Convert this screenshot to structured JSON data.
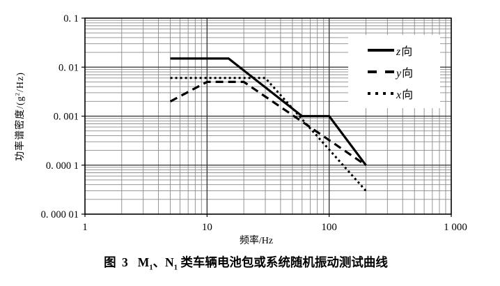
{
  "colors": {
    "background": "#ffffff",
    "curve": "#000000",
    "grid_minor": "#8a8a8a",
    "grid_major": "#2e2e2e",
    "border": "#000000"
  },
  "axes": {
    "x_title": "频率/Hz",
    "y_title_part1": "功率谱密度/(g",
    "y_title_sup": "2",
    "y_title_part2": "/Hz)"
  },
  "legend": {
    "entries": [
      {
        "letter": "z",
        "suffix": "向",
        "style": "solid"
      },
      {
        "letter": "y",
        "suffix": "向",
        "style": "dashed"
      },
      {
        "letter": "x",
        "suffix": "向",
        "style": "dotted"
      }
    ]
  },
  "caption": {
    "fig_no": "图 3",
    "part1": "M",
    "sub1": "1",
    "part2": "、N",
    "sub2": "1",
    "part3": " 类车辆电池包或系统随机振动测试曲线"
  },
  "chart_data": {
    "type": "line",
    "title": "图 3 M₁、N₁ 类车辆电池包或系统随机振动测试曲线",
    "xlabel": "频率/Hz",
    "ylabel": "功率谱密度/(g²/Hz)",
    "xscale": "log",
    "yscale": "log",
    "xlim": [
      1,
      1000
    ],
    "ylim": [
      1e-05,
      0.1
    ],
    "grid": true,
    "legend_position": "upper-right-inside",
    "x_ticks": [
      {
        "value": 1,
        "label": "1"
      },
      {
        "value": 10,
        "label": "10"
      },
      {
        "value": 100,
        "label": "100"
      },
      {
        "value": 1000,
        "label": "1 000"
      }
    ],
    "y_ticks": [
      {
        "value": 0.1,
        "label": "0. 1"
      },
      {
        "value": 0.01,
        "label": "0. 01"
      },
      {
        "value": 0.001,
        "label": "0. 001"
      },
      {
        "value": 0.0001,
        "label": "0. 000 1"
      },
      {
        "value": 1e-05,
        "label": "0. 000 01"
      }
    ],
    "series": [
      {
        "name": "z向",
        "axis": "z",
        "style": "solid",
        "points": [
          [
            5,
            0.015
          ],
          [
            15,
            0.015
          ],
          [
            60,
            0.001
          ],
          [
            100,
            0.001
          ],
          [
            200,
            0.0001
          ]
        ]
      },
      {
        "name": "y向",
        "axis": "y",
        "style": "dashed",
        "points": [
          [
            5,
            0.002
          ],
          [
            10,
            0.005
          ],
          [
            20,
            0.005
          ],
          [
            200,
            0.0001
          ]
        ]
      },
      {
        "name": "x向",
        "axis": "x",
        "style": "dotted",
        "points": [
          [
            5,
            0.006
          ],
          [
            30,
            0.006
          ],
          [
            200,
            3e-05
          ]
        ]
      }
    ]
  }
}
